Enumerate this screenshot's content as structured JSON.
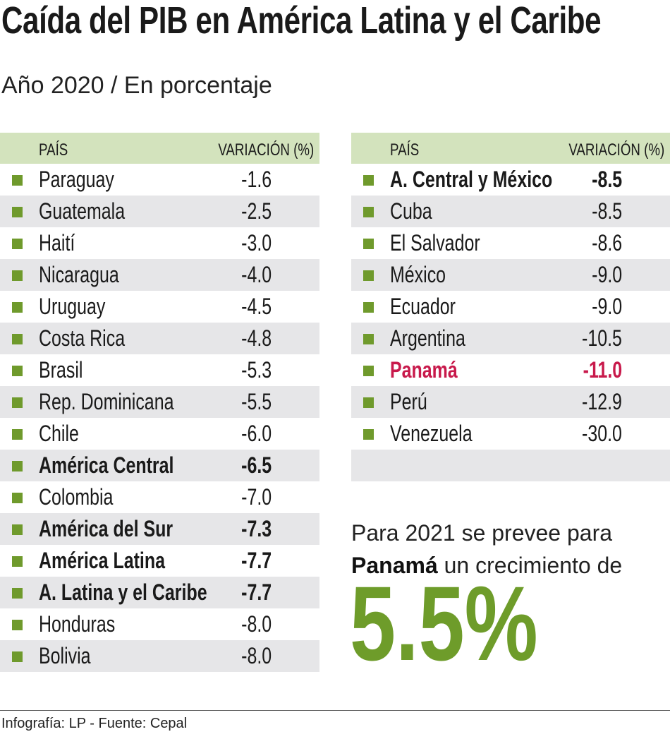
{
  "title": "Caída del PIB en América Latina y el Caribe",
  "subtitle": "Año 2020 / En porcentaje",
  "colors": {
    "header": "#d3e3bd",
    "alt_row": "#e6e6e8",
    "marker": "#6f9a2c",
    "highlight": "#c8194b",
    "big_number": "#6e9c2a"
  },
  "chart_data": {
    "type": "table",
    "columns": [
      "PAÍS",
      "VARIACIÓN (%)"
    ],
    "left": [
      {
        "name": "Paraguay",
        "value": "-1.6"
      },
      {
        "name": "Guatemala",
        "value": "-2.5"
      },
      {
        "name": "Haití",
        "value": "-3.0"
      },
      {
        "name": "Nicaragua",
        "value": "-4.0"
      },
      {
        "name": "Uruguay",
        "value": "-4.5"
      },
      {
        "name": "Costa Rica",
        "value": "-4.8"
      },
      {
        "name": "Brasil",
        "value": "-5.3"
      },
      {
        "name": "Rep. Dominicana",
        "value": "-5.5"
      },
      {
        "name": "Chile",
        "value": "-6.0"
      },
      {
        "name": "América Central",
        "value": "-6.5",
        "bold": true
      },
      {
        "name": "Colombia",
        "value": "-7.0"
      },
      {
        "name": "América del Sur",
        "value": "-7.3",
        "bold": true
      },
      {
        "name": "América Latina",
        "value": "-7.7",
        "bold": true
      },
      {
        "name": "A. Latina y el Caribe",
        "value": "-7.7",
        "bold": true
      },
      {
        "name": "Honduras",
        "value": "-8.0"
      },
      {
        "name": "Bolivia",
        "value": "-8.0"
      }
    ],
    "right": [
      {
        "name": "A. Central y México",
        "value": "-8.5",
        "bold": true
      },
      {
        "name": "Cuba",
        "value": "-8.5"
      },
      {
        "name": "El Salvador",
        "value": "-8.6"
      },
      {
        "name": "México",
        "value": "-9.0"
      },
      {
        "name": "Ecuador",
        "value": "-9.0"
      },
      {
        "name": "Argentina",
        "value": "-10.5"
      },
      {
        "name": "Panamá",
        "value": "-11.0",
        "highlight": true
      },
      {
        "name": "Perú",
        "value": "-12.9"
      },
      {
        "name": "Venezuela",
        "value": "-30.0"
      }
    ]
  },
  "note": {
    "line1": "Para 2021 se prevee para",
    "bold": "Panamá",
    "line2_rest": " un crecimiento de",
    "big": "5.5%"
  },
  "footer": "Infografía: LP - Fuente: Cepal"
}
